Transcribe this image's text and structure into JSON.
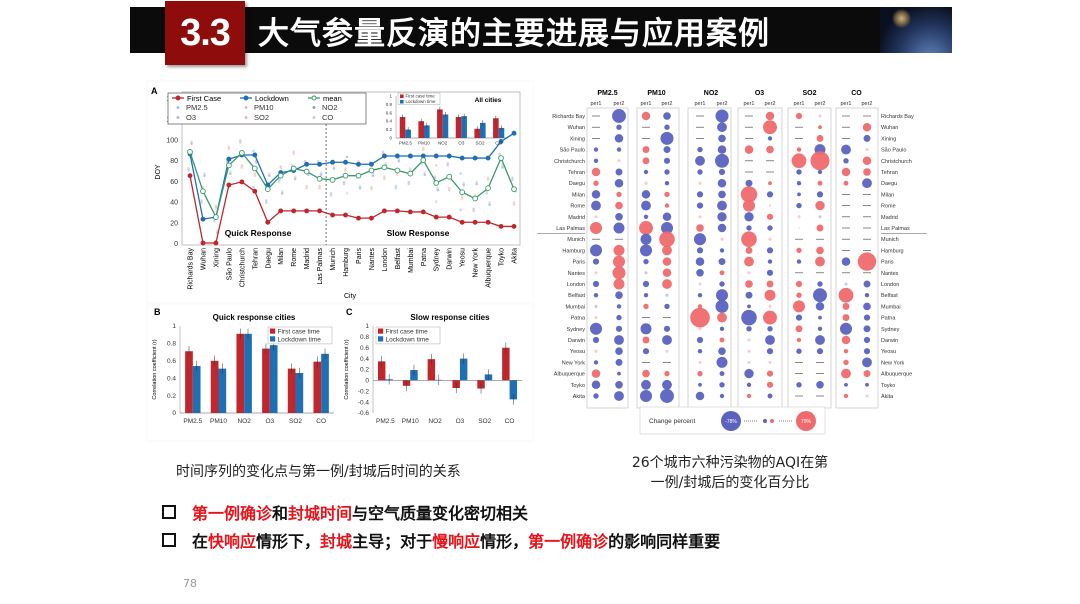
{
  "header": {
    "section_number": "3.3",
    "title": "大气参量反演的主要进展与应用案例",
    "thumbnail": "space-probe-image"
  },
  "figure_left_caption": "时间序列的变化点与第一例/封城后时间的关系",
  "figure_right_caption_line1": "26个城市六种污染物的AQI在第",
  "figure_right_caption_line2": "一例/封城后的变化百分比",
  "bullets": [
    {
      "parts": [
        {
          "text": "第一例确诊",
          "red": true
        },
        {
          "text": "和",
          "red": false
        },
        {
          "text": "封城时间",
          "red": true
        },
        {
          "text": "与空气质量变化密切相关",
          "red": false
        }
      ]
    },
    {
      "parts": [
        {
          "text": "在",
          "red": false
        },
        {
          "text": "快响应",
          "red": true
        },
        {
          "text": "情形下，",
          "red": false
        },
        {
          "text": "封城",
          "red": true
        },
        {
          "text": "主导；对于",
          "red": false
        },
        {
          "text": "慢响应",
          "red": true
        },
        {
          "text": "情形，",
          "red": false
        },
        {
          "text": "第一例确诊",
          "red": true
        },
        {
          "text": "的影响同样重要",
          "red": false
        }
      ]
    }
  ],
  "page_number": "78",
  "colors": {
    "first_case": "#c0272d",
    "lockdown": "#1f6fb5",
    "mean": "#3a9a6a",
    "negative": "#5b62c0",
    "positive": "#ef6a6e",
    "header_red": "#8e0c0c"
  },
  "chart_data": [
    {
      "id": "A",
      "panel_label": "A",
      "type": "line",
      "ylabel": "DOY",
      "xlabel": "City",
      "ylim": [
        0,
        140
      ],
      "yticks": [
        0,
        20,
        40,
        60,
        80,
        100,
        120,
        140
      ],
      "categories": [
        "Richards Bay",
        "Wuhan",
        "Xining",
        "São Paulo",
        "Christchurch",
        "Tehran",
        "Daegu",
        "Milan",
        "Rome",
        "Madrid",
        "Las Palmas",
        "Munich",
        "Hamburg",
        "Paris",
        "Nantes",
        "London",
        "Belfast",
        "Mumbai",
        "Patna",
        "Sydney",
        "Darwin",
        "Yeosu",
        "New York",
        "Albuquerque",
        "Toyko",
        "Akita"
      ],
      "series": [
        {
          "name": "First Case",
          "color": "#c0272d",
          "values": [
            65,
            0,
            0,
            56,
            59,
            50,
            20,
            31,
            31,
            31,
            31,
            27,
            27,
            24,
            24,
            31,
            31,
            30,
            30,
            25,
            25,
            20,
            20,
            20,
            16,
            16
          ]
        },
        {
          "name": "Lockdown",
          "color": "#1f6fb5",
          "values": [
            86,
            23,
            25,
            81,
            85,
            85,
            56,
            68,
            70,
            76,
            76,
            78,
            78,
            76,
            76,
            84,
            84,
            84,
            84,
            84,
            84,
            82,
            82,
            82,
            98,
            106
          ]
        },
        {
          "name": "mean",
          "color": "#3a9a6a",
          "values": [
            88,
            50,
            25,
            75,
            87,
            72,
            52,
            65,
            72,
            69,
            62,
            61,
            65,
            65,
            70,
            73,
            70,
            67,
            80,
            58,
            64,
            49,
            43,
            53,
            82,
            52
          ]
        }
      ],
      "legend_extra": [
        "PM2.5",
        "PM10",
        "NO2",
        "O3",
        "SO2",
        "CO"
      ],
      "annotations": [
        "Quick Response",
        "Slow Response"
      ],
      "legend": "top-left",
      "grid": false
    },
    {
      "id": "A-inset",
      "type": "bar",
      "title": "All cities",
      "categories": [
        "PM2.5",
        "PM10",
        "NO2",
        "O3",
        "SO2",
        "CO"
      ],
      "ylim": [
        0,
        1
      ],
      "yticks": [
        0,
        0.2,
        0.4,
        0.6,
        0.8,
        1
      ],
      "series": [
        {
          "name": "First case time",
          "values": [
            0.5,
            0.4,
            0.68,
            0.5,
            0.22,
            0.47
          ]
        },
        {
          "name": "Lockdown time",
          "values": [
            0.2,
            0.3,
            0.56,
            0.52,
            0.36,
            0.24
          ]
        }
      ]
    },
    {
      "id": "B",
      "panel_label": "B",
      "type": "bar",
      "title": "Quick response cities",
      "ylabel": "Correlation coefficient (r)",
      "categories": [
        "PM2.5",
        "PM10",
        "NO2",
        "O3",
        "SO2",
        "CO"
      ],
      "ylim": [
        0,
        1
      ],
      "yticks": [
        0,
        0.2,
        0.4,
        0.6,
        0.8,
        1
      ],
      "series": [
        {
          "name": "First case time",
          "values": [
            0.71,
            0.6,
            0.91,
            0.74,
            0.51,
            0.59
          ]
        },
        {
          "name": "Lockdown time",
          "values": [
            0.54,
            0.51,
            0.91,
            0.78,
            0.46,
            0.68
          ]
        }
      ],
      "legend": "top-right"
    },
    {
      "id": "C",
      "panel_label": "C",
      "type": "bar",
      "title": "Slow response cities",
      "ylabel": "Correlation coefficient (r)",
      "categories": [
        "PM2.5",
        "PM10",
        "NO2",
        "O3",
        "SO2",
        "CO"
      ],
      "ylim": [
        -0.6,
        1
      ],
      "yticks": [
        -0.6,
        -0.4,
        -0.2,
        0,
        0.2,
        0.4,
        0.6,
        0.8,
        1
      ],
      "series": [
        {
          "name": "First case time",
          "values": [
            0.35,
            -0.1,
            0.39,
            -0.14,
            -0.15,
            0.6
          ]
        },
        {
          "name": "Lockdown time",
          "values": [
            0.02,
            0.19,
            0.01,
            0.4,
            0.11,
            -0.35
          ]
        }
      ],
      "legend": "top-left"
    },
    {
      "id": "D",
      "type": "heatmap",
      "pollutants": [
        "PM2.5",
        "PM10",
        "NO2",
        "O3",
        "SO2",
        "CO"
      ],
      "periods": [
        "per1",
        "per2"
      ],
      "cities": [
        "Richards Bay",
        "Wuhan",
        "Xining",
        "São Paulo",
        "Christchurch",
        "Tehran",
        "Daegu",
        "Milan",
        "Rome",
        "Madrid",
        "Las Palmas",
        "Munich",
        "Hamburg",
        "Paris",
        "Nantes",
        "London",
        "Belfast",
        "Mumbai",
        "Patna",
        "Sydney",
        "Darwin",
        "Yeosu",
        "New York",
        "Albuquerque",
        "Toyko",
        "Akita"
      ],
      "values_note_null": "dash = no data",
      "values": [
        [
          null,
          -40,
          15,
          -12,
          null,
          -35,
          null,
          15,
          8,
          2,
          null,
          null
        ],
        [
          null,
          -6,
          null,
          -6,
          null,
          -20,
          null,
          40,
          null,
          3,
          null,
          15
        ],
        [
          null,
          -15,
          null,
          -35,
          null,
          -12,
          null,
          -4,
          null,
          10,
          null,
          -10
        ],
        [
          -4,
          -4,
          10,
          -10,
          -6,
          -15,
          15,
          12,
          4,
          -25,
          -20,
          2
        ],
        [
          -4,
          2,
          10,
          -8,
          -20,
          -40,
          null,
          null,
          45,
          75,
          -6,
          15
        ],
        [
          15,
          -10,
          -4,
          -6,
          -6,
          -8,
          null,
          null,
          -6,
          -4,
          15,
          12
        ],
        [
          6,
          -15,
          2,
          -4,
          2,
          -15,
          -10,
          3,
          -4,
          5,
          5,
          -20
        ],
        [
          -15,
          6,
          -15,
          6,
          -8,
          -12,
          55,
          -8,
          -3,
          -8,
          null,
          null
        ],
        [
          -20,
          12,
          -20,
          4,
          -8,
          -20,
          30,
          1,
          -6,
          18,
          null,
          null
        ],
        [
          2,
          -12,
          -4,
          -15,
          2,
          -18,
          -18,
          8,
          2,
          -2,
          null,
          null
        ],
        [
          30,
          -25,
          40,
          -30,
          12,
          -15,
          -6,
          -6,
          0,
          10,
          null,
          null
        ],
        [
          null,
          null,
          -25,
          50,
          -30,
          2,
          50,
          2,
          null,
          null,
          null,
          null
        ],
        [
          -30,
          25,
          -30,
          20,
          -8,
          -4,
          10,
          -8,
          6,
          12,
          null,
          null
        ],
        [
          -8,
          30,
          -6,
          15,
          -15,
          -10,
          20,
          -4,
          -4,
          20,
          -15,
          70
        ],
        [
          2,
          35,
          -2,
          15,
          -12,
          5,
          2,
          -8,
          null,
          null,
          null,
          null
        ],
        [
          -8,
          25,
          -8,
          20,
          2,
          -6,
          12,
          10,
          8,
          -6,
          -2,
          -10
        ],
        [
          -4,
          -12,
          -4,
          -2,
          -4,
          -30,
          -10,
          25,
          6,
          -40,
          45,
          -4
        ],
        [
          -2,
          -4,
          6,
          -6,
          4,
          -35,
          -3,
          2,
          30,
          -15,
          10,
          -12
        ],
        [
          2,
          -6,
          null,
          null,
          80,
          20,
          -50,
          40,
          -8,
          -3,
          10,
          -8
        ],
        [
          -30,
          -8,
          -25,
          -8,
          2,
          -4,
          -6,
          -6,
          10,
          -4,
          -30,
          -10
        ],
        [
          -8,
          -20,
          10,
          -20,
          -8,
          5,
          2,
          -20,
          4,
          -20,
          15,
          -8
        ],
        [
          2,
          -12,
          -8,
          2,
          -4,
          -12,
          2,
          -8,
          -6,
          -8,
          4,
          -8
        ],
        [
          -4,
          -10,
          null,
          null,
          2,
          -25,
          2,
          2,
          null,
          null,
          6,
          -20
        ],
        [
          15,
          -3,
          12,
          6,
          6,
          -5,
          -18,
          8,
          null,
          null,
          20,
          10
        ],
        [
          -15,
          -12,
          -20,
          -20,
          -3,
          -6,
          -4,
          8,
          -6,
          -12,
          -3,
          -3
        ],
        [
          -6,
          -20,
          -30,
          -40,
          -15,
          -4,
          4,
          -5,
          null,
          null,
          4,
          2
        ]
      ],
      "legend_title": "Change percent",
      "legend_min": "-78%",
      "legend_max": "79%"
    }
  ]
}
